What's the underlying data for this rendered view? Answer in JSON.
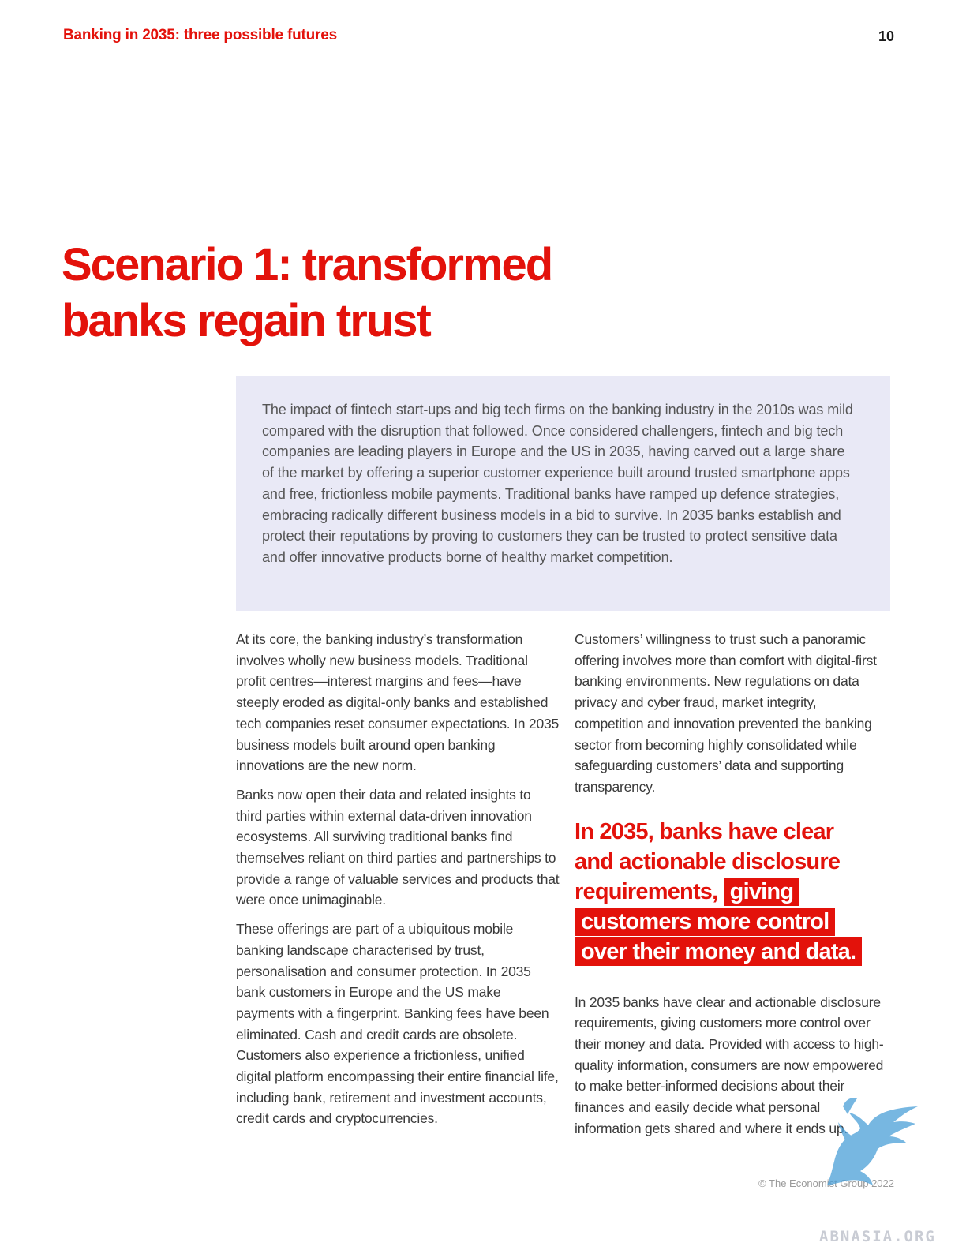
{
  "header": {
    "title": "Banking in 2035: three possible futures",
    "page_number": "10"
  },
  "main": {
    "title_line1": "Scenario 1: transformed",
    "title_line2": "banks regain trust",
    "intro": "The impact of fintech start-ups and big tech firms on the banking industry in the 2010s was mild compared with the disruption that followed. Once considered challengers, fintech and big tech companies are leading players in Europe and the US in 2035, having carved out a large share of the market by offering a superior customer experience built around trusted smartphone apps and free, frictionless mobile payments. Traditional banks have ramped up defence strategies, embracing radically different business models in a bid to survive. In 2035 banks establish and protect their reputations by proving to customers they can be trusted to protect sensitive data and offer innovative products borne of healthy market competition.",
    "left_column": [
      "At its core, the banking industry’s transformation involves wholly new business models. Traditional profit centres—interest margins and fees—have steeply eroded as digital-only banks and established tech companies reset consumer expectations. In 2035 business models built around open banking innovations are the new norm.",
      "Banks now open their data and related insights to third parties within external data-driven innovation ecosystems. All surviving traditional banks find themselves reliant on third parties and partnerships to provide a range of valuable services and products that were once unimaginable.",
      "These offerings are part of a ubiquitous mobile banking landscape characterised by trust, personalisation and consumer protection. In 2035 bank customers in Europe and the US make payments with a fingerprint. Banking fees have been eliminated. Cash and credit cards are obsolete. Customers also experience a frictionless, unified digital platform encompassing their entire financial life, including bank, retirement and investment accounts, credit cards and cryptocurrencies."
    ],
    "right_column_top": "Customers’ willingness to trust such a panoramic offering involves more than comfort with digital-first banking environments. New regulations on data privacy and cyber fraud, market integrity, competition and innovation prevented the banking sector from becoming highly consolidated while safeguarding customers’ data and supporting transparency.",
    "pullquote_plain": "In 2035, banks have clear and actionable disclosure requirements, ",
    "pullquote_highlight": "giving customers more control over their money and data.",
    "right_column_bottom": "In 2035 banks have clear and actionable disclosure requirements, giving customers more control over their money and data. Provided with access to high-quality information, consumers are now empowered to make better-informed decisions about their finances and easily decide what personal information gets shared and where it ends up."
  },
  "footer": {
    "copyright": "© The Economist Group 2022"
  },
  "watermark": {
    "text": "ABNASIA.ORG",
    "icon": "griffin-icon"
  },
  "colors": {
    "accent": "#e3120b",
    "intro_bg": "#e9e9f6"
  }
}
